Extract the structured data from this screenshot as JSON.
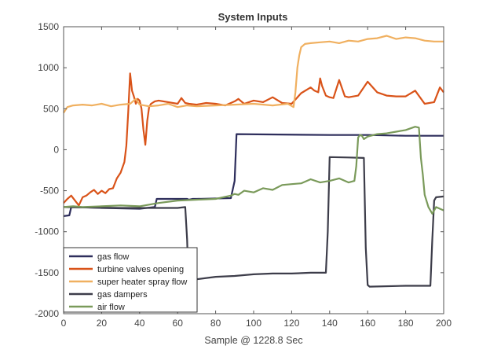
{
  "chart_data": {
    "type": "line",
    "title": "System Inputs",
    "xlabel": "Sample @ 1228.8 Sec",
    "ylabel": "",
    "xlim": [
      0,
      200
    ],
    "ylim": [
      -2000,
      1500
    ],
    "xticks": [
      0,
      20,
      40,
      60,
      80,
      100,
      120,
      140,
      160,
      180,
      200
    ],
    "yticks": [
      -2000,
      -1500,
      -1000,
      -500,
      0,
      500,
      1000,
      1500
    ],
    "grid": false,
    "legend_position": "bottom-left",
    "series": [
      {
        "name": "gas flow",
        "color": "#2e2e5c",
        "x": [
          0,
          3,
          4,
          20,
          40,
          48,
          49,
          65,
          66,
          68,
          70,
          88,
          90,
          91,
          140,
          141,
          160,
          180,
          200
        ],
        "y": [
          -810,
          -800,
          -700,
          -710,
          -720,
          -700,
          -600,
          -600,
          -610,
          -600,
          -600,
          -590,
          -380,
          190,
          180,
          180,
          180,
          170,
          170
        ]
      },
      {
        "name": "turbine valves opening",
        "color": "#d95319",
        "x": [
          0,
          2,
          4,
          6,
          8,
          10,
          12,
          14,
          16,
          18,
          20,
          22,
          24,
          26,
          28,
          30,
          32,
          33,
          34,
          35,
          36,
          37,
          38,
          39,
          40,
          41,
          42,
          43,
          44,
          45,
          46,
          48,
          50,
          55,
          60,
          62,
          64,
          66,
          70,
          75,
          80,
          85,
          90,
          92,
          95,
          100,
          105,
          110,
          115,
          120,
          125,
          130,
          132,
          134,
          135,
          136,
          138,
          140,
          142,
          145,
          148,
          150,
          155,
          160,
          165,
          170,
          175,
          180,
          185,
          190,
          195,
          198,
          200
        ],
        "y": [
          -650,
          -600,
          -560,
          -620,
          -680,
          -580,
          -560,
          -520,
          -490,
          -540,
          -500,
          -530,
          -480,
          -470,
          -350,
          -280,
          -150,
          50,
          460,
          930,
          720,
          650,
          560,
          620,
          600,
          500,
          250,
          60,
          350,
          520,
          560,
          590,
          600,
          580,
          560,
          630,
          570,
          560,
          550,
          570,
          560,
          540,
          590,
          620,
          560,
          600,
          580,
          640,
          570,
          560,
          690,
          760,
          720,
          700,
          870,
          780,
          660,
          640,
          630,
          850,
          650,
          640,
          660,
          830,
          700,
          660,
          650,
          650,
          720,
          560,
          580,
          760,
          700
        ]
      },
      {
        "name": "super heater spray flow",
        "color": "#f0b060",
        "x": [
          0,
          2,
          5,
          10,
          15,
          20,
          25,
          30,
          35,
          38,
          40,
          45,
          50,
          55,
          60,
          65,
          70,
          80,
          90,
          100,
          110,
          118,
          121,
          122,
          123,
          124,
          125,
          127,
          130,
          135,
          140,
          145,
          150,
          155,
          160,
          165,
          170,
          175,
          180,
          185,
          190,
          195,
          200
        ],
        "y": [
          450,
          520,
          540,
          550,
          540,
          560,
          530,
          550,
          560,
          620,
          550,
          530,
          540,
          560,
          520,
          540,
          530,
          540,
          550,
          560,
          540,
          560,
          520,
          700,
          1000,
          1150,
          1250,
          1290,
          1300,
          1310,
          1320,
          1300,
          1330,
          1320,
          1350,
          1360,
          1390,
          1350,
          1370,
          1360,
          1330,
          1320,
          1320
        ]
      },
      {
        "name": "gas dampers",
        "color": "#3d3d4a",
        "x": [
          0,
          30,
          60,
          64,
          65,
          66,
          67,
          68,
          70,
          80,
          90,
          100,
          110,
          120,
          130,
          138,
          139,
          140,
          150,
          158,
          159,
          160,
          161,
          180,
          190,
          193,
          194,
          195,
          196,
          200
        ],
        "y": [
          -700,
          -710,
          -710,
          -700,
          -1100,
          -1850,
          -1690,
          -1560,
          -1580,
          -1550,
          -1540,
          -1520,
          -1510,
          -1510,
          -1500,
          -1500,
          -1000,
          -90,
          -95,
          -100,
          -1200,
          -1650,
          -1670,
          -1660,
          -1660,
          -1660,
          -1100,
          -620,
          -580,
          -570
        ]
      },
      {
        "name": "air flow",
        "color": "#7a9a5a",
        "x": [
          0,
          5,
          10,
          20,
          30,
          40,
          50,
          60,
          70,
          80,
          88,
          90,
          92,
          95,
          100,
          105,
          110,
          115,
          120,
          125,
          130,
          135,
          140,
          145,
          150,
          153,
          154,
          155,
          156,
          157,
          158,
          160,
          165,
          170,
          175,
          180,
          185,
          187,
          188,
          189,
          190,
          192,
          194,
          196,
          200
        ],
        "y": [
          -700,
          -690,
          -700,
          -690,
          -680,
          -690,
          -650,
          -620,
          -610,
          -600,
          -560,
          -540,
          -550,
          -500,
          -520,
          -470,
          -490,
          -430,
          -420,
          -410,
          -360,
          -400,
          -380,
          -350,
          -400,
          -380,
          -200,
          150,
          180,
          170,
          130,
          160,
          190,
          200,
          220,
          240,
          280,
          270,
          -100,
          -300,
          -550,
          -700,
          -780,
          -700,
          -740
        ]
      }
    ]
  }
}
